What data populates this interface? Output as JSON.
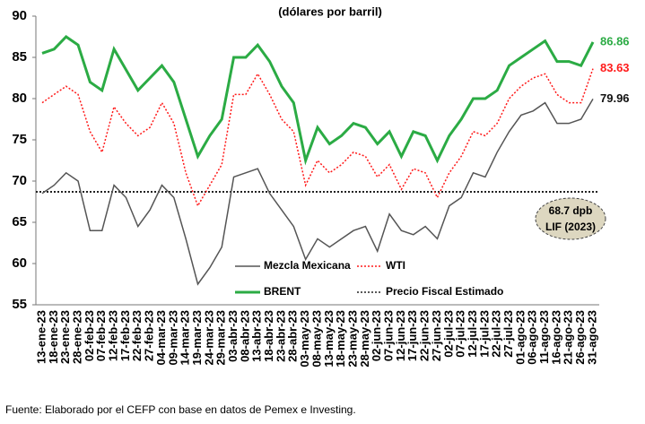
{
  "chart_data": {
    "type": "line",
    "subtitle": "(dólares por barril)",
    "source": "Fuente: Elaborado por el CEFP con base en datos de Pemex e Investing.",
    "categories": [
      "13-ene-23",
      "18-ene-23",
      "23-ene-23",
      "28-ene-23",
      "02-feb-23",
      "07-feb-23",
      "12-feb-23",
      "17-feb-23",
      "22-feb-23",
      "27-feb-23",
      "04-mar-23",
      "09-mar-23",
      "14-mar-23",
      "19-mar-23",
      "24-mar-23",
      "29-mar-23",
      "03-abr-23",
      "08-abr-23",
      "13-abr-23",
      "18-abr-23",
      "23-abr-23",
      "28-abr-23",
      "03-may-23",
      "08-may-23",
      "13-may-23",
      "18-may-23",
      "23-may-23",
      "28-may-23",
      "02-jun-23",
      "07-jun-23",
      "12-jun-23",
      "17-jun-23",
      "22-jun-23",
      "27-jun-23",
      "02-jul-23",
      "07-jul-23",
      "12-jul-23",
      "17-jul-23",
      "22-jul-23",
      "27-jul-23",
      "01-ago-23",
      "06-ago-23",
      "11-ago-23",
      "16-ago-23",
      "21-ago-23",
      "26-ago-23",
      "31-ago-23"
    ],
    "series": [
      {
        "name": "BRENT",
        "color": "#2bab44",
        "line_style": "solid",
        "values": [
          85.5,
          86,
          87.5,
          86.5,
          82,
          81,
          86,
          83.5,
          81,
          82.5,
          84,
          82,
          77.5,
          73,
          75.5,
          77.5,
          85,
          85,
          86.5,
          84.5,
          81.5,
          79.5,
          72.5,
          76.5,
          74.5,
          75.5,
          77,
          76.5,
          74.5,
          76,
          73,
          76,
          75.5,
          72.5,
          75.5,
          77.5,
          80,
          80,
          81,
          84,
          85,
          86,
          87,
          84.5,
          84.5,
          84,
          86.86
        ]
      },
      {
        "name": "WTI",
        "color": "#ff1a1a",
        "line_style": "dotted",
        "values": [
          79.5,
          80.5,
          81.5,
          80.5,
          76,
          73.5,
          79,
          77,
          75.5,
          76.5,
          79.5,
          77,
          71,
          67,
          69.5,
          72,
          80.5,
          80.5,
          83,
          80.5,
          77.5,
          76,
          69.5,
          72.5,
          71,
          72,
          73.5,
          73,
          70.5,
          72,
          69,
          71.5,
          71,
          68,
          71,
          73,
          76,
          75.5,
          77,
          80,
          81.5,
          82.5,
          83,
          80.5,
          79.5,
          79.5,
          83.63
        ]
      },
      {
        "name": "Mezcla Mexicana",
        "color": "#555555",
        "line_style": "solid",
        "values": [
          68.5,
          69.5,
          71,
          70,
          64,
          64,
          69.5,
          68,
          64.5,
          66.5,
          69.5,
          68,
          63,
          57.5,
          59.5,
          62,
          70.5,
          71,
          71.5,
          68.5,
          66.5,
          64.5,
          60.5,
          63,
          62,
          63,
          64,
          64.5,
          61.5,
          66,
          64,
          63.5,
          64.5,
          63,
          67,
          68,
          71,
          70.5,
          73.5,
          76,
          78,
          78.5,
          79.5,
          77,
          77,
          77.5,
          79.96
        ]
      }
    ],
    "reference_line": {
      "name": "Precio Fiscal Estimado",
      "value": 68.7,
      "color": "#222222",
      "line_style": "dotted"
    },
    "annotation": [
      "68.7 dpb",
      "LIF (2023)"
    ],
    "ylim": [
      55,
      90
    ],
    "yticks": [
      55,
      60,
      65,
      70,
      75,
      80,
      85,
      90
    ],
    "grid": false
  }
}
